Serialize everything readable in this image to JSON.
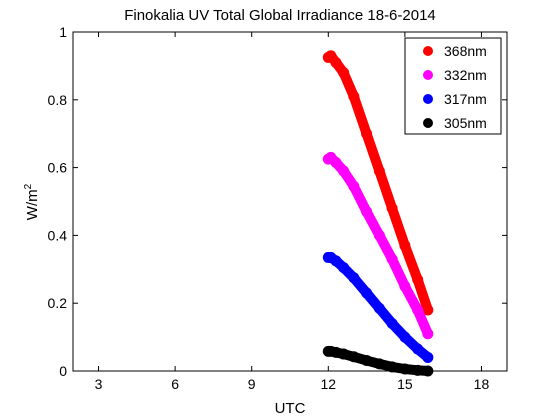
{
  "chart_data": {
    "type": "scatter",
    "title": "Finokalia UV Total Global Irradiance 18-6-2014",
    "xlabel": "UTC",
    "ylabel_base": "W/m",
    "ylabel_sup": "2",
    "xlim": [
      2,
      19
    ],
    "ylim": [
      0,
      1
    ],
    "xticks": [
      3,
      6,
      9,
      12,
      15,
      18
    ],
    "yticks": [
      0,
      0.2,
      0.4,
      0.6,
      0.8,
      1
    ],
    "ytick_labels": [
      "0",
      "0.2",
      "0.4",
      "0.6",
      "0.8",
      "1"
    ],
    "grid": false,
    "legend_position": "top-right",
    "series": [
      {
        "name": "368nm",
        "color": "#ff0000",
        "x": [
          12.0,
          12.1,
          12.3,
          12.6,
          13.0,
          13.5,
          14.0,
          14.5,
          15.0,
          15.5,
          15.9
        ],
        "y": [
          0.925,
          0.93,
          0.91,
          0.88,
          0.81,
          0.7,
          0.59,
          0.48,
          0.37,
          0.27,
          0.18
        ]
      },
      {
        "name": "332nm",
        "color": "#ff00ff",
        "x": [
          12.0,
          12.1,
          12.3,
          12.6,
          13.0,
          13.5,
          14.0,
          14.5,
          15.0,
          15.5,
          15.9
        ],
        "y": [
          0.625,
          0.63,
          0.615,
          0.59,
          0.545,
          0.47,
          0.4,
          0.33,
          0.25,
          0.18,
          0.11
        ]
      },
      {
        "name": "317nm",
        "color": "#0000ff",
        "x": [
          12.0,
          12.1,
          12.3,
          12.6,
          13.0,
          13.5,
          14.0,
          14.5,
          15.0,
          15.5,
          15.9
        ],
        "y": [
          0.335,
          0.335,
          0.325,
          0.305,
          0.275,
          0.23,
          0.185,
          0.14,
          0.1,
          0.065,
          0.04
        ]
      },
      {
        "name": "305nm",
        "color": "#000000",
        "x": [
          12.0,
          12.1,
          12.3,
          12.6,
          13.0,
          13.5,
          14.0,
          14.5,
          15.0,
          15.5,
          15.9
        ],
        "y": [
          0.058,
          0.058,
          0.055,
          0.05,
          0.042,
          0.031,
          0.021,
          0.012,
          0.006,
          0.002,
          0.0
        ]
      }
    ]
  }
}
